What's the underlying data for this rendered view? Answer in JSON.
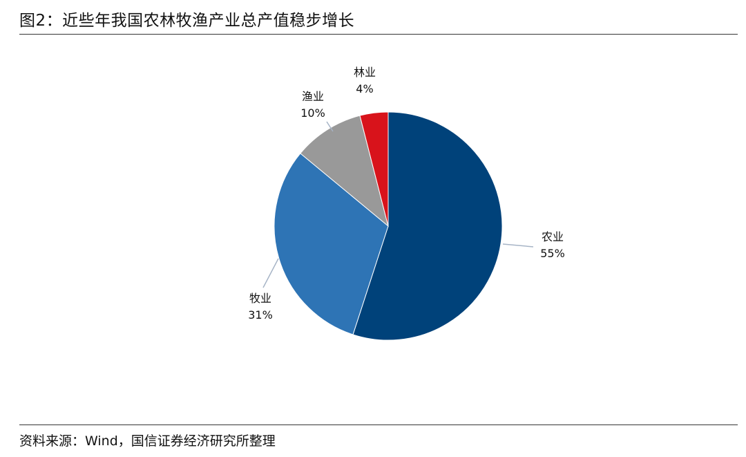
{
  "figure": {
    "title": "图2：近些年我国农林牧渔产业总产值稳步增长",
    "source": "资料来源：Wind，国信证券经济研究所整理"
  },
  "chart_data": {
    "type": "pie",
    "title": "",
    "slices": [
      {
        "label": "农业",
        "value": 55,
        "value_label": "55%",
        "color": "#00427A"
      },
      {
        "label": "牧业",
        "value": 31,
        "value_label": "31%",
        "color": "#2E74B5"
      },
      {
        "label": "渔业",
        "value": 10,
        "value_label": "10%",
        "color": "#999999"
      },
      {
        "label": "林业",
        "value": 4,
        "value_label": "4%",
        "color": "#D8131B"
      }
    ],
    "start_angle": "12 o'clock",
    "direction": "clockwise",
    "legend": "none",
    "leader_line_color": "#A6B4C6"
  }
}
